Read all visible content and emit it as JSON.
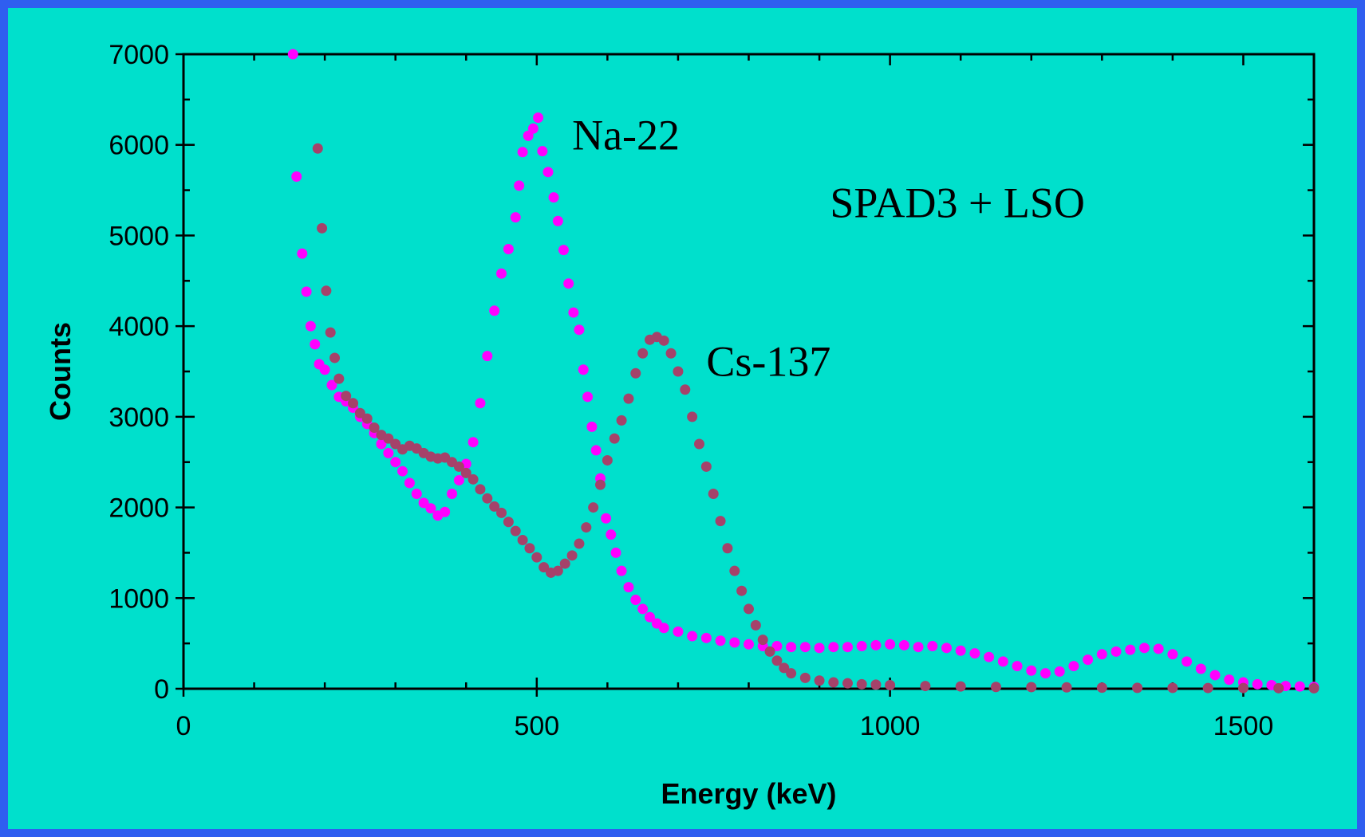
{
  "chart_data": {
    "type": "scatter",
    "xlabel": "Energy (keV)",
    "ylabel": "Counts",
    "xlim": [
      0,
      1600
    ],
    "ylim": [
      0,
      7000
    ],
    "x_ticks": [
      0,
      500,
      1000,
      1500
    ],
    "y_ticks": [
      0,
      1000,
      2000,
      3000,
      4000,
      5000,
      6000,
      7000
    ],
    "grid": false,
    "background_color": "#00e0cc",
    "border_color": "#2f5ef0",
    "annotations": [
      {
        "text": "Na-22",
        "x": 550,
        "y": 5950
      },
      {
        "text": "Cs-137",
        "x": 740,
        "y": 3450
      },
      {
        "text": "SPAD3 + LSO",
        "x": 915,
        "y": 5200
      }
    ],
    "series": [
      {
        "label": "Na-22",
        "color": "#ff00ff",
        "points": [
          [
            155,
            7000
          ],
          [
            160,
            5650
          ],
          [
            168,
            4800
          ],
          [
            174,
            4380
          ],
          [
            180,
            4000
          ],
          [
            186,
            3800
          ],
          [
            192,
            3580
          ],
          [
            200,
            3520
          ],
          [
            210,
            3350
          ],
          [
            220,
            3220
          ],
          [
            230,
            3170
          ],
          [
            240,
            3100
          ],
          [
            250,
            3000
          ],
          [
            260,
            2920
          ],
          [
            270,
            2820
          ],
          [
            280,
            2700
          ],
          [
            290,
            2600
          ],
          [
            300,
            2500
          ],
          [
            310,
            2400
          ],
          [
            320,
            2270
          ],
          [
            330,
            2150
          ],
          [
            340,
            2050
          ],
          [
            350,
            1990
          ],
          [
            360,
            1910
          ],
          [
            370,
            1950
          ],
          [
            380,
            2150
          ],
          [
            390,
            2300
          ],
          [
            400,
            2480
          ],
          [
            410,
            2720
          ],
          [
            420,
            3150
          ],
          [
            430,
            3670
          ],
          [
            440,
            4170
          ],
          [
            450,
            4580
          ],
          [
            460,
            4850
          ],
          [
            470,
            5200
          ],
          [
            475,
            5550
          ],
          [
            480,
            5920
          ],
          [
            488,
            6100
          ],
          [
            495,
            6180
          ],
          [
            502,
            6300
          ],
          [
            508,
            5930
          ],
          [
            516,
            5700
          ],
          [
            524,
            5420
          ],
          [
            530,
            5160
          ],
          [
            538,
            4840
          ],
          [
            545,
            4470
          ],
          [
            552,
            4150
          ],
          [
            560,
            3960
          ],
          [
            566,
            3520
          ],
          [
            572,
            3220
          ],
          [
            578,
            2890
          ],
          [
            584,
            2630
          ],
          [
            590,
            2320
          ],
          [
            598,
            1880
          ],
          [
            605,
            1700
          ],
          [
            612,
            1500
          ],
          [
            620,
            1300
          ],
          [
            630,
            1120
          ],
          [
            640,
            980
          ],
          [
            650,
            880
          ],
          [
            660,
            790
          ],
          [
            670,
            720
          ],
          [
            680,
            670
          ],
          [
            700,
            630
          ],
          [
            720,
            580
          ],
          [
            740,
            560
          ],
          [
            760,
            530
          ],
          [
            780,
            510
          ],
          [
            800,
            490
          ],
          [
            820,
            470
          ],
          [
            840,
            470
          ],
          [
            860,
            460
          ],
          [
            880,
            460
          ],
          [
            900,
            450
          ],
          [
            920,
            460
          ],
          [
            940,
            460
          ],
          [
            960,
            470
          ],
          [
            980,
            480
          ],
          [
            1000,
            490
          ],
          [
            1020,
            480
          ],
          [
            1040,
            460
          ],
          [
            1060,
            470
          ],
          [
            1080,
            450
          ],
          [
            1100,
            420
          ],
          [
            1120,
            390
          ],
          [
            1140,
            350
          ],
          [
            1160,
            300
          ],
          [
            1180,
            250
          ],
          [
            1200,
            200
          ],
          [
            1220,
            170
          ],
          [
            1240,
            190
          ],
          [
            1260,
            250
          ],
          [
            1280,
            320
          ],
          [
            1300,
            380
          ],
          [
            1320,
            410
          ],
          [
            1340,
            430
          ],
          [
            1360,
            450
          ],
          [
            1380,
            440
          ],
          [
            1400,
            380
          ],
          [
            1420,
            300
          ],
          [
            1440,
            220
          ],
          [
            1460,
            150
          ],
          [
            1480,
            100
          ],
          [
            1500,
            70
          ],
          [
            1520,
            50
          ],
          [
            1540,
            40
          ],
          [
            1560,
            30
          ],
          [
            1580,
            25
          ],
          [
            1600,
            20
          ]
        ]
      },
      {
        "label": "Cs-137",
        "color": "#a5426a",
        "points": [
          [
            190,
            5960
          ],
          [
            196,
            5080
          ],
          [
            202,
            4390
          ],
          [
            208,
            3930
          ],
          [
            214,
            3650
          ],
          [
            220,
            3420
          ],
          [
            230,
            3230
          ],
          [
            240,
            3150
          ],
          [
            250,
            3040
          ],
          [
            260,
            2980
          ],
          [
            270,
            2880
          ],
          [
            280,
            2800
          ],
          [
            290,
            2760
          ],
          [
            300,
            2700
          ],
          [
            310,
            2640
          ],
          [
            320,
            2680
          ],
          [
            330,
            2650
          ],
          [
            340,
            2600
          ],
          [
            350,
            2560
          ],
          [
            360,
            2540
          ],
          [
            370,
            2550
          ],
          [
            380,
            2500
          ],
          [
            390,
            2450
          ],
          [
            400,
            2380
          ],
          [
            410,
            2310
          ],
          [
            420,
            2200
          ],
          [
            430,
            2100
          ],
          [
            440,
            2010
          ],
          [
            450,
            1940
          ],
          [
            460,
            1840
          ],
          [
            470,
            1740
          ],
          [
            480,
            1640
          ],
          [
            490,
            1550
          ],
          [
            500,
            1450
          ],
          [
            510,
            1340
          ],
          [
            520,
            1280
          ],
          [
            530,
            1300
          ],
          [
            540,
            1380
          ],
          [
            550,
            1470
          ],
          [
            560,
            1600
          ],
          [
            570,
            1780
          ],
          [
            580,
            2000
          ],
          [
            590,
            2250
          ],
          [
            600,
            2520
          ],
          [
            610,
            2760
          ],
          [
            620,
            2960
          ],
          [
            630,
            3200
          ],
          [
            640,
            3480
          ],
          [
            650,
            3700
          ],
          [
            660,
            3850
          ],
          [
            670,
            3880
          ],
          [
            680,
            3840
          ],
          [
            690,
            3700
          ],
          [
            700,
            3500
          ],
          [
            710,
            3300
          ],
          [
            720,
            3000
          ],
          [
            730,
            2700
          ],
          [
            740,
            2450
          ],
          [
            750,
            2150
          ],
          [
            760,
            1850
          ],
          [
            770,
            1550
          ],
          [
            780,
            1300
          ],
          [
            790,
            1080
          ],
          [
            800,
            880
          ],
          [
            810,
            700
          ],
          [
            820,
            540
          ],
          [
            830,
            410
          ],
          [
            840,
            310
          ],
          [
            850,
            230
          ],
          [
            860,
            170
          ],
          [
            880,
            120
          ],
          [
            900,
            90
          ],
          [
            920,
            70
          ],
          [
            940,
            60
          ],
          [
            960,
            50
          ],
          [
            980,
            45
          ],
          [
            1000,
            40
          ],
          [
            1050,
            30
          ],
          [
            1100,
            25
          ],
          [
            1150,
            20
          ],
          [
            1200,
            18
          ],
          [
            1250,
            15
          ],
          [
            1300,
            12
          ],
          [
            1350,
            10
          ],
          [
            1400,
            10
          ],
          [
            1450,
            8
          ],
          [
            1500,
            8
          ],
          [
            1550,
            6
          ],
          [
            1600,
            5
          ]
        ]
      }
    ]
  }
}
